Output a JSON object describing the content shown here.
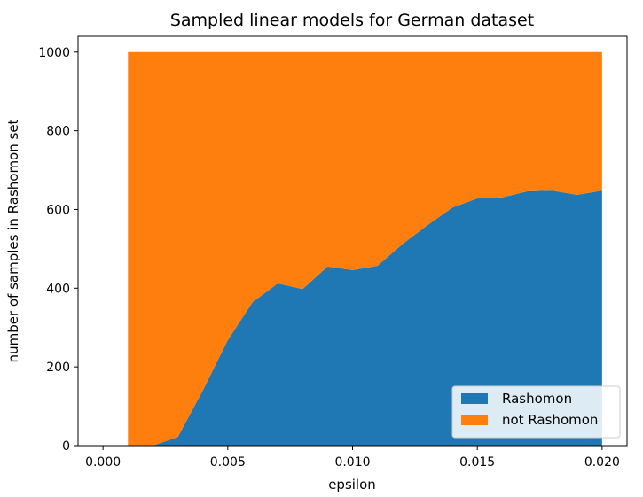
{
  "chart_data": {
    "type": "area",
    "stacked": true,
    "title": "Sampled linear models for German dataset",
    "xlabel": "epsilon",
    "ylabel": "number of samples in Rashomon set",
    "xlim": [
      -0.001,
      0.021
    ],
    "ylim": [
      0,
      1040
    ],
    "x_ticks": [
      0.0,
      0.005,
      0.01,
      0.015,
      0.02
    ],
    "x_tick_labels": [
      "0.000",
      "0.005",
      "0.010",
      "0.015",
      "0.020"
    ],
    "y_ticks": [
      0,
      200,
      400,
      600,
      800,
      1000
    ],
    "y_tick_labels": [
      "0",
      "200",
      "400",
      "600",
      "800",
      "1000"
    ],
    "x": [
      0.001,
      0.002,
      0.003,
      0.004,
      0.005,
      0.006,
      0.007,
      0.008,
      0.009,
      0.01,
      0.011,
      0.012,
      0.013,
      0.014,
      0.015,
      0.016,
      0.017,
      0.018,
      0.019,
      0.02
    ],
    "series": [
      {
        "name": "Rashomon",
        "color": "#1f77b4",
        "values": [
          0,
          0,
          22,
          140,
          268,
          365,
          412,
          398,
          455,
          446,
          457,
          512,
          560,
          605,
          628,
          631,
          646,
          648,
          637,
          648
        ]
      },
      {
        "name": "not Rashomon",
        "color": "#ff7f0e",
        "values": [
          1000,
          1000,
          978,
          860,
          732,
          635,
          588,
          602,
          545,
          554,
          543,
          488,
          440,
          395,
          372,
          369,
          354,
          352,
          363,
          352
        ]
      }
    ],
    "legend_position": "lower-right",
    "grid": false
  }
}
